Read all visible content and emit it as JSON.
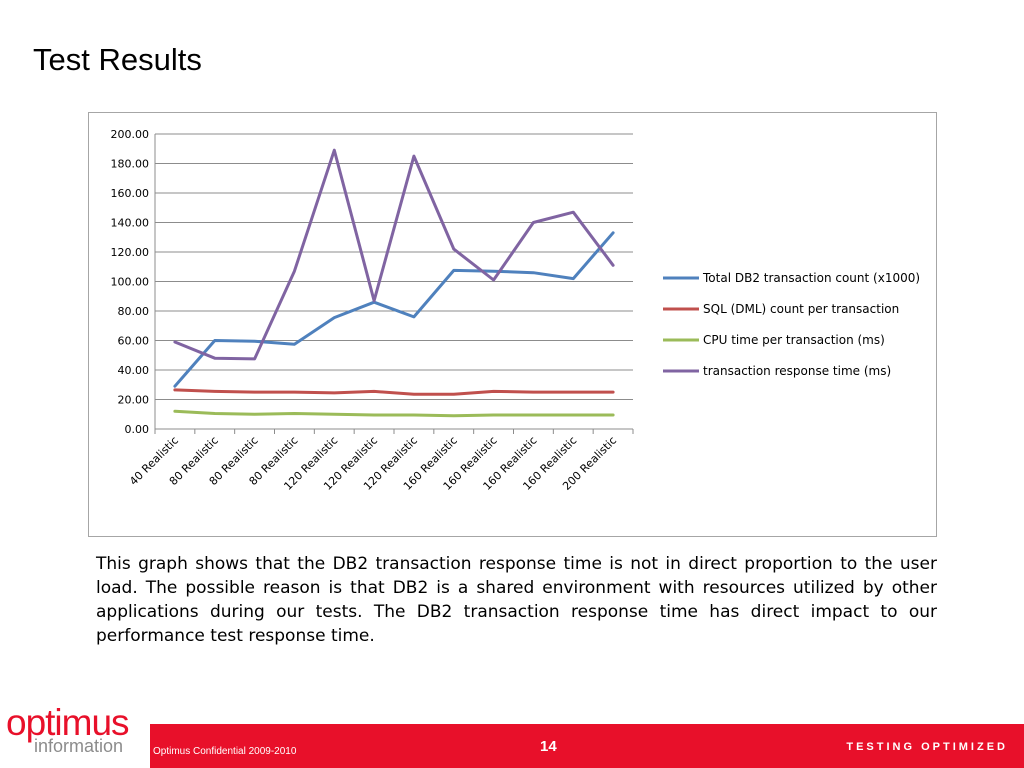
{
  "slide": {
    "title": "Test Results",
    "caption": "This graph shows that the DB2 transaction response time is not in direct proportion to the user load. The possible reason is that DB2 is a shared environment with resources utilized by other applications during our tests. The DB2 transaction response time has direct impact to our performance test response time."
  },
  "footer": {
    "confidential": "Optimus Confidential 2009-2010",
    "page_number": "14",
    "tagline": "TESTING OPTIMIZED",
    "bar_color": "#e8102a"
  },
  "logo": {
    "main": "optimus",
    "sub": "information"
  },
  "chart_data": {
    "type": "line",
    "categories": [
      "40 Realistic",
      "80 Realistic",
      "80 Realistic",
      "80 Realistic",
      "120 Realistic",
      "120 Realistic",
      "120 Realistic",
      "160 Realistic",
      "160 Realistic",
      "160 Realistic",
      "160 Realistic",
      "200 Realistic"
    ],
    "ylim": [
      0,
      200
    ],
    "yticks": [
      0,
      20,
      40,
      60,
      80,
      100,
      120,
      140,
      160,
      180,
      200
    ],
    "ytick_labels": [
      "0.00",
      "20.00",
      "40.00",
      "60.00",
      "80.00",
      "100.00",
      "120.00",
      "140.00",
      "160.00",
      "180.00",
      "200.00"
    ],
    "grid": true,
    "legend_position": "right",
    "series": [
      {
        "name": "Total DB2 transaction count (x1000)",
        "color": "#4f81bd",
        "values": [
          29,
          60,
          59.5,
          57.5,
          75.5,
          86,
          76,
          107.5,
          107,
          106,
          102,
          133
        ]
      },
      {
        "name": "SQL (DML) count per transaction",
        "color": "#c0504d",
        "values": [
          26.5,
          25.5,
          25,
          25,
          24.5,
          25.5,
          23.5,
          23.5,
          25.5,
          25,
          25,
          25
        ]
      },
      {
        "name": "CPU time per transaction (ms)",
        "color": "#9bbb59",
        "values": [
          12,
          10.5,
          10,
          10.5,
          10,
          9.5,
          9.5,
          9,
          9.5,
          9.5,
          9.5,
          9.5
        ]
      },
      {
        "name": "transaction response time (ms)",
        "color": "#8064a2",
        "values": [
          59,
          48,
          47.5,
          107,
          189,
          87,
          185,
          122,
          101,
          140,
          147,
          111
        ]
      }
    ]
  }
}
